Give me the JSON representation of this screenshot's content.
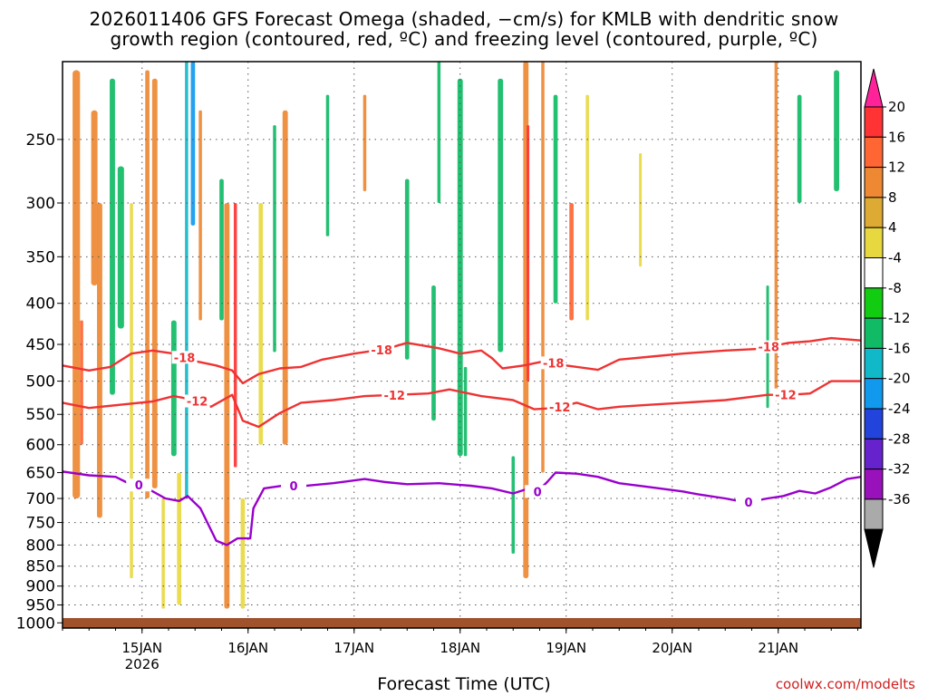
{
  "chart_data": {
    "type": "heatmap",
    "title_lines": [
      "2026011406 GFS Forecast Omega (shaded, −cm/s) for KMLB with dendritic snow",
      "growth region (contoured, red, ºC) and freezing level (contoured, purple, ºC)"
    ],
    "xlabel": "Forecast Time (UTC)",
    "ylabel": "",
    "x_ticks": [
      {
        "t": 0.5,
        "label": "15JAN",
        "sub": "2026"
      },
      {
        "t": 1.5,
        "label": "16JAN"
      },
      {
        "t": 2.5,
        "label": "17JAN"
      },
      {
        "t": 3.5,
        "label": "18JAN"
      },
      {
        "t": 4.5,
        "label": "19JAN"
      },
      {
        "t": 5.5,
        "label": "20JAN"
      },
      {
        "t": 6.5,
        "label": "21JAN"
      }
    ],
    "x_range": [
      -0.25,
      7.28
    ],
    "y_ticks": [
      250,
      300,
      350,
      400,
      450,
      500,
      550,
      600,
      650,
      700,
      750,
      800,
      850,
      900,
      950,
      1000
    ],
    "y_range_hpa": [
      200,
      1015
    ],
    "colorbar": {
      "labels": [
        20,
        16,
        12,
        8,
        4,
        -4,
        -8,
        -12,
        -16,
        -20,
        -24,
        -28,
        -32,
        -36
      ],
      "colors": [
        "#ff2299",
        "#ff3333",
        "#ff6633",
        "#ee8833",
        "#ddaa33",
        "#e8d840",
        "#ffffff",
        "#11cc11",
        "#11bb66",
        "#11b8c8",
        "#1199ee",
        "#2244dd",
        "#6622cc",
        "#9911bb",
        "#aaaaaa",
        "#000000"
      ]
    },
    "freezing_level": {
      "color": "#9900cc",
      "label": "0",
      "label_t": [
        0.47,
        1.93,
        4.23,
        6.22
      ],
      "t": [
        -0.25,
        0.0,
        0.25,
        0.35,
        0.45,
        0.55,
        0.72,
        0.85,
        0.93,
        1.05,
        1.2,
        1.3,
        1.4,
        1.52,
        1.55,
        1.65,
        1.85,
        2.0,
        2.3,
        2.6,
        2.8,
        3.0,
        3.3,
        3.6,
        3.8,
        4.0,
        4.15,
        4.22,
        4.32,
        4.4,
        4.6,
        4.8,
        5.0,
        5.3,
        5.6,
        5.75,
        6.0,
        6.2,
        6.4,
        6.55,
        6.7,
        6.85,
        7.0,
        7.15,
        7.28
      ],
      "hpa": [
        648,
        655,
        658,
        668,
        672,
        680,
        700,
        705,
        695,
        720,
        790,
        800,
        785,
        785,
        720,
        680,
        674,
        676,
        670,
        662,
        668,
        672,
        670,
        675,
        680,
        690,
        680,
        688,
        668,
        650,
        652,
        658,
        670,
        678,
        686,
        692,
        700,
        708,
        700,
        695,
        685,
        690,
        678,
        662,
        658
      ]
    },
    "dgz_contours": [
      {
        "value": -18,
        "color": "#ee3333",
        "label_t": [
          0.9,
          2.76,
          4.38,
          6.41
        ],
        "t": [
          -0.25,
          0.0,
          0.2,
          0.4,
          0.6,
          0.8,
          1.0,
          1.2,
          1.35,
          1.45,
          1.6,
          1.8,
          2.0,
          2.2,
          2.5,
          2.8,
          3.0,
          3.3,
          3.5,
          3.7,
          3.8,
          3.9,
          4.1,
          4.3,
          4.5,
          4.8,
          5.0,
          5.3,
          5.6,
          6.0,
          6.3,
          6.6,
          6.8,
          7.0,
          7.28
        ],
        "hpa": [
          478,
          485,
          480,
          462,
          458,
          462,
          472,
          478,
          485,
          503,
          490,
          482,
          480,
          470,
          462,
          456,
          448,
          455,
          462,
          458,
          468,
          482,
          478,
          472,
          478,
          484,
          470,
          466,
          462,
          458,
          456,
          448,
          446,
          442,
          445
        ]
      },
      {
        "value": -12,
        "color": "#ee3333",
        "label_t": [
          1.02,
          2.88,
          4.44,
          6.57
        ],
        "t": [
          -0.25,
          0.0,
          0.3,
          0.6,
          0.8,
          1.0,
          1.15,
          1.35,
          1.45,
          1.6,
          1.8,
          2.0,
          2.3,
          2.6,
          2.9,
          3.2,
          3.4,
          3.7,
          4.0,
          4.2,
          4.4,
          4.6,
          4.8,
          5.0,
          5.3,
          5.6,
          6.0,
          6.2,
          6.4,
          6.6,
          6.8,
          7.0,
          7.28
        ],
        "hpa": [
          532,
          540,
          535,
          530,
          522,
          528,
          538,
          520,
          560,
          570,
          548,
          532,
          528,
          522,
          520,
          518,
          512,
          522,
          528,
          542,
          540,
          532,
          542,
          538,
          535,
          532,
          528,
          524,
          520,
          520,
          518,
          500,
          500
        ]
      }
    ],
    "omega_blobs": [
      {
        "t": -0.12,
        "p1": 205,
        "p2": 700,
        "w": 0.07,
        "v": 8
      },
      {
        "t": -0.07,
        "p1": 420,
        "p2": 600,
        "w": 0.03,
        "v": 14
      },
      {
        "t": 0.05,
        "p1": 230,
        "p2": 380,
        "w": 0.06,
        "v": 8
      },
      {
        "t": 0.1,
        "p1": 300,
        "p2": 740,
        "w": 0.05,
        "v": 8
      },
      {
        "t": 0.22,
        "p1": 210,
        "p2": 520,
        "w": 0.05,
        "v": -8
      },
      {
        "t": 0.3,
        "p1": 270,
        "p2": 430,
        "w": 0.06,
        "v": -10
      },
      {
        "t": 0.4,
        "p1": 300,
        "p2": 880,
        "w": 0.03,
        "v": 6
      },
      {
        "t": 0.55,
        "p1": 205,
        "p2": 700,
        "w": 0.04,
        "v": 8
      },
      {
        "t": 0.62,
        "p1": 210,
        "p2": 680,
        "w": 0.05,
        "v": 10
      },
      {
        "t": 0.7,
        "p1": 700,
        "p2": 960,
        "w": 0.03,
        "v": 6
      },
      {
        "t": 0.8,
        "p1": 420,
        "p2": 620,
        "w": 0.05,
        "v": -8
      },
      {
        "t": 0.85,
        "p1": 650,
        "p2": 950,
        "w": 0.04,
        "v": 6
      },
      {
        "t": 0.92,
        "p1": 200,
        "p2": 700,
        "w": 0.03,
        "v": -12
      },
      {
        "t": 0.98,
        "p1": 200,
        "p2": 320,
        "w": 0.04,
        "v": -16
      },
      {
        "t": 1.05,
        "p1": 230,
        "p2": 420,
        "w": 0.03,
        "v": 8
      },
      {
        "t": 1.25,
        "p1": 280,
        "p2": 420,
        "w": 0.04,
        "v": -8
      },
      {
        "t": 1.3,
        "p1": 300,
        "p2": 960,
        "w": 0.05,
        "v": 10
      },
      {
        "t": 1.38,
        "p1": 300,
        "p2": 640,
        "w": 0.03,
        "v": 16
      },
      {
        "t": 1.45,
        "p1": 700,
        "p2": 960,
        "w": 0.04,
        "v": 6
      },
      {
        "t": 1.62,
        "p1": 300,
        "p2": 600,
        "w": 0.04,
        "v": 6
      },
      {
        "t": 1.75,
        "p1": 240,
        "p2": 460,
        "w": 0.03,
        "v": -8
      },
      {
        "t": 1.85,
        "p1": 230,
        "p2": 600,
        "w": 0.05,
        "v": 8
      },
      {
        "t": 2.25,
        "p1": 220,
        "p2": 330,
        "w": 0.03,
        "v": -8
      },
      {
        "t": 2.6,
        "p1": 220,
        "p2": 290,
        "w": 0.03,
        "v": 8
      },
      {
        "t": 3.0,
        "p1": 280,
        "p2": 470,
        "w": 0.04,
        "v": -8
      },
      {
        "t": 3.25,
        "p1": 380,
        "p2": 560,
        "w": 0.04,
        "v": -8
      },
      {
        "t": 3.3,
        "p1": 200,
        "p2": 300,
        "w": 0.03,
        "v": -8
      },
      {
        "t": 3.5,
        "p1": 210,
        "p2": 620,
        "w": 0.05,
        "v": -8
      },
      {
        "t": 3.55,
        "p1": 480,
        "p2": 620,
        "w": 0.03,
        "v": -10
      },
      {
        "t": 3.88,
        "p1": 210,
        "p2": 460,
        "w": 0.05,
        "v": -8
      },
      {
        "t": 4.0,
        "p1": 620,
        "p2": 820,
        "w": 0.03,
        "v": -8
      },
      {
        "t": 4.12,
        "p1": 200,
        "p2": 880,
        "w": 0.05,
        "v": 10
      },
      {
        "t": 4.14,
        "p1": 240,
        "p2": 500,
        "w": 0.025,
        "v": 16
      },
      {
        "t": 4.28,
        "p1": 200,
        "p2": 650,
        "w": 0.03,
        "v": 8
      },
      {
        "t": 4.4,
        "p1": 220,
        "p2": 400,
        "w": 0.04,
        "v": -8
      },
      {
        "t": 4.55,
        "p1": 300,
        "p2": 420,
        "w": 0.04,
        "v": 12
      },
      {
        "t": 4.7,
        "p1": 220,
        "p2": 420,
        "w": 0.03,
        "v": 6
      },
      {
        "t": 5.2,
        "p1": 260,
        "p2": 360,
        "w": 0.02,
        "v": 6
      },
      {
        "t": 6.4,
        "p1": 380,
        "p2": 540,
        "w": 0.025,
        "v": -8
      },
      {
        "t": 6.48,
        "p1": 200,
        "p2": 530,
        "w": 0.03,
        "v": 10
      },
      {
        "t": 6.7,
        "p1": 220,
        "p2": 300,
        "w": 0.04,
        "v": -8
      },
      {
        "t": 7.05,
        "p1": 205,
        "p2": 290,
        "w": 0.05,
        "v": -8
      }
    ],
    "surface_color": "#a0522d"
  },
  "credit": "coolwx.com/modelts"
}
